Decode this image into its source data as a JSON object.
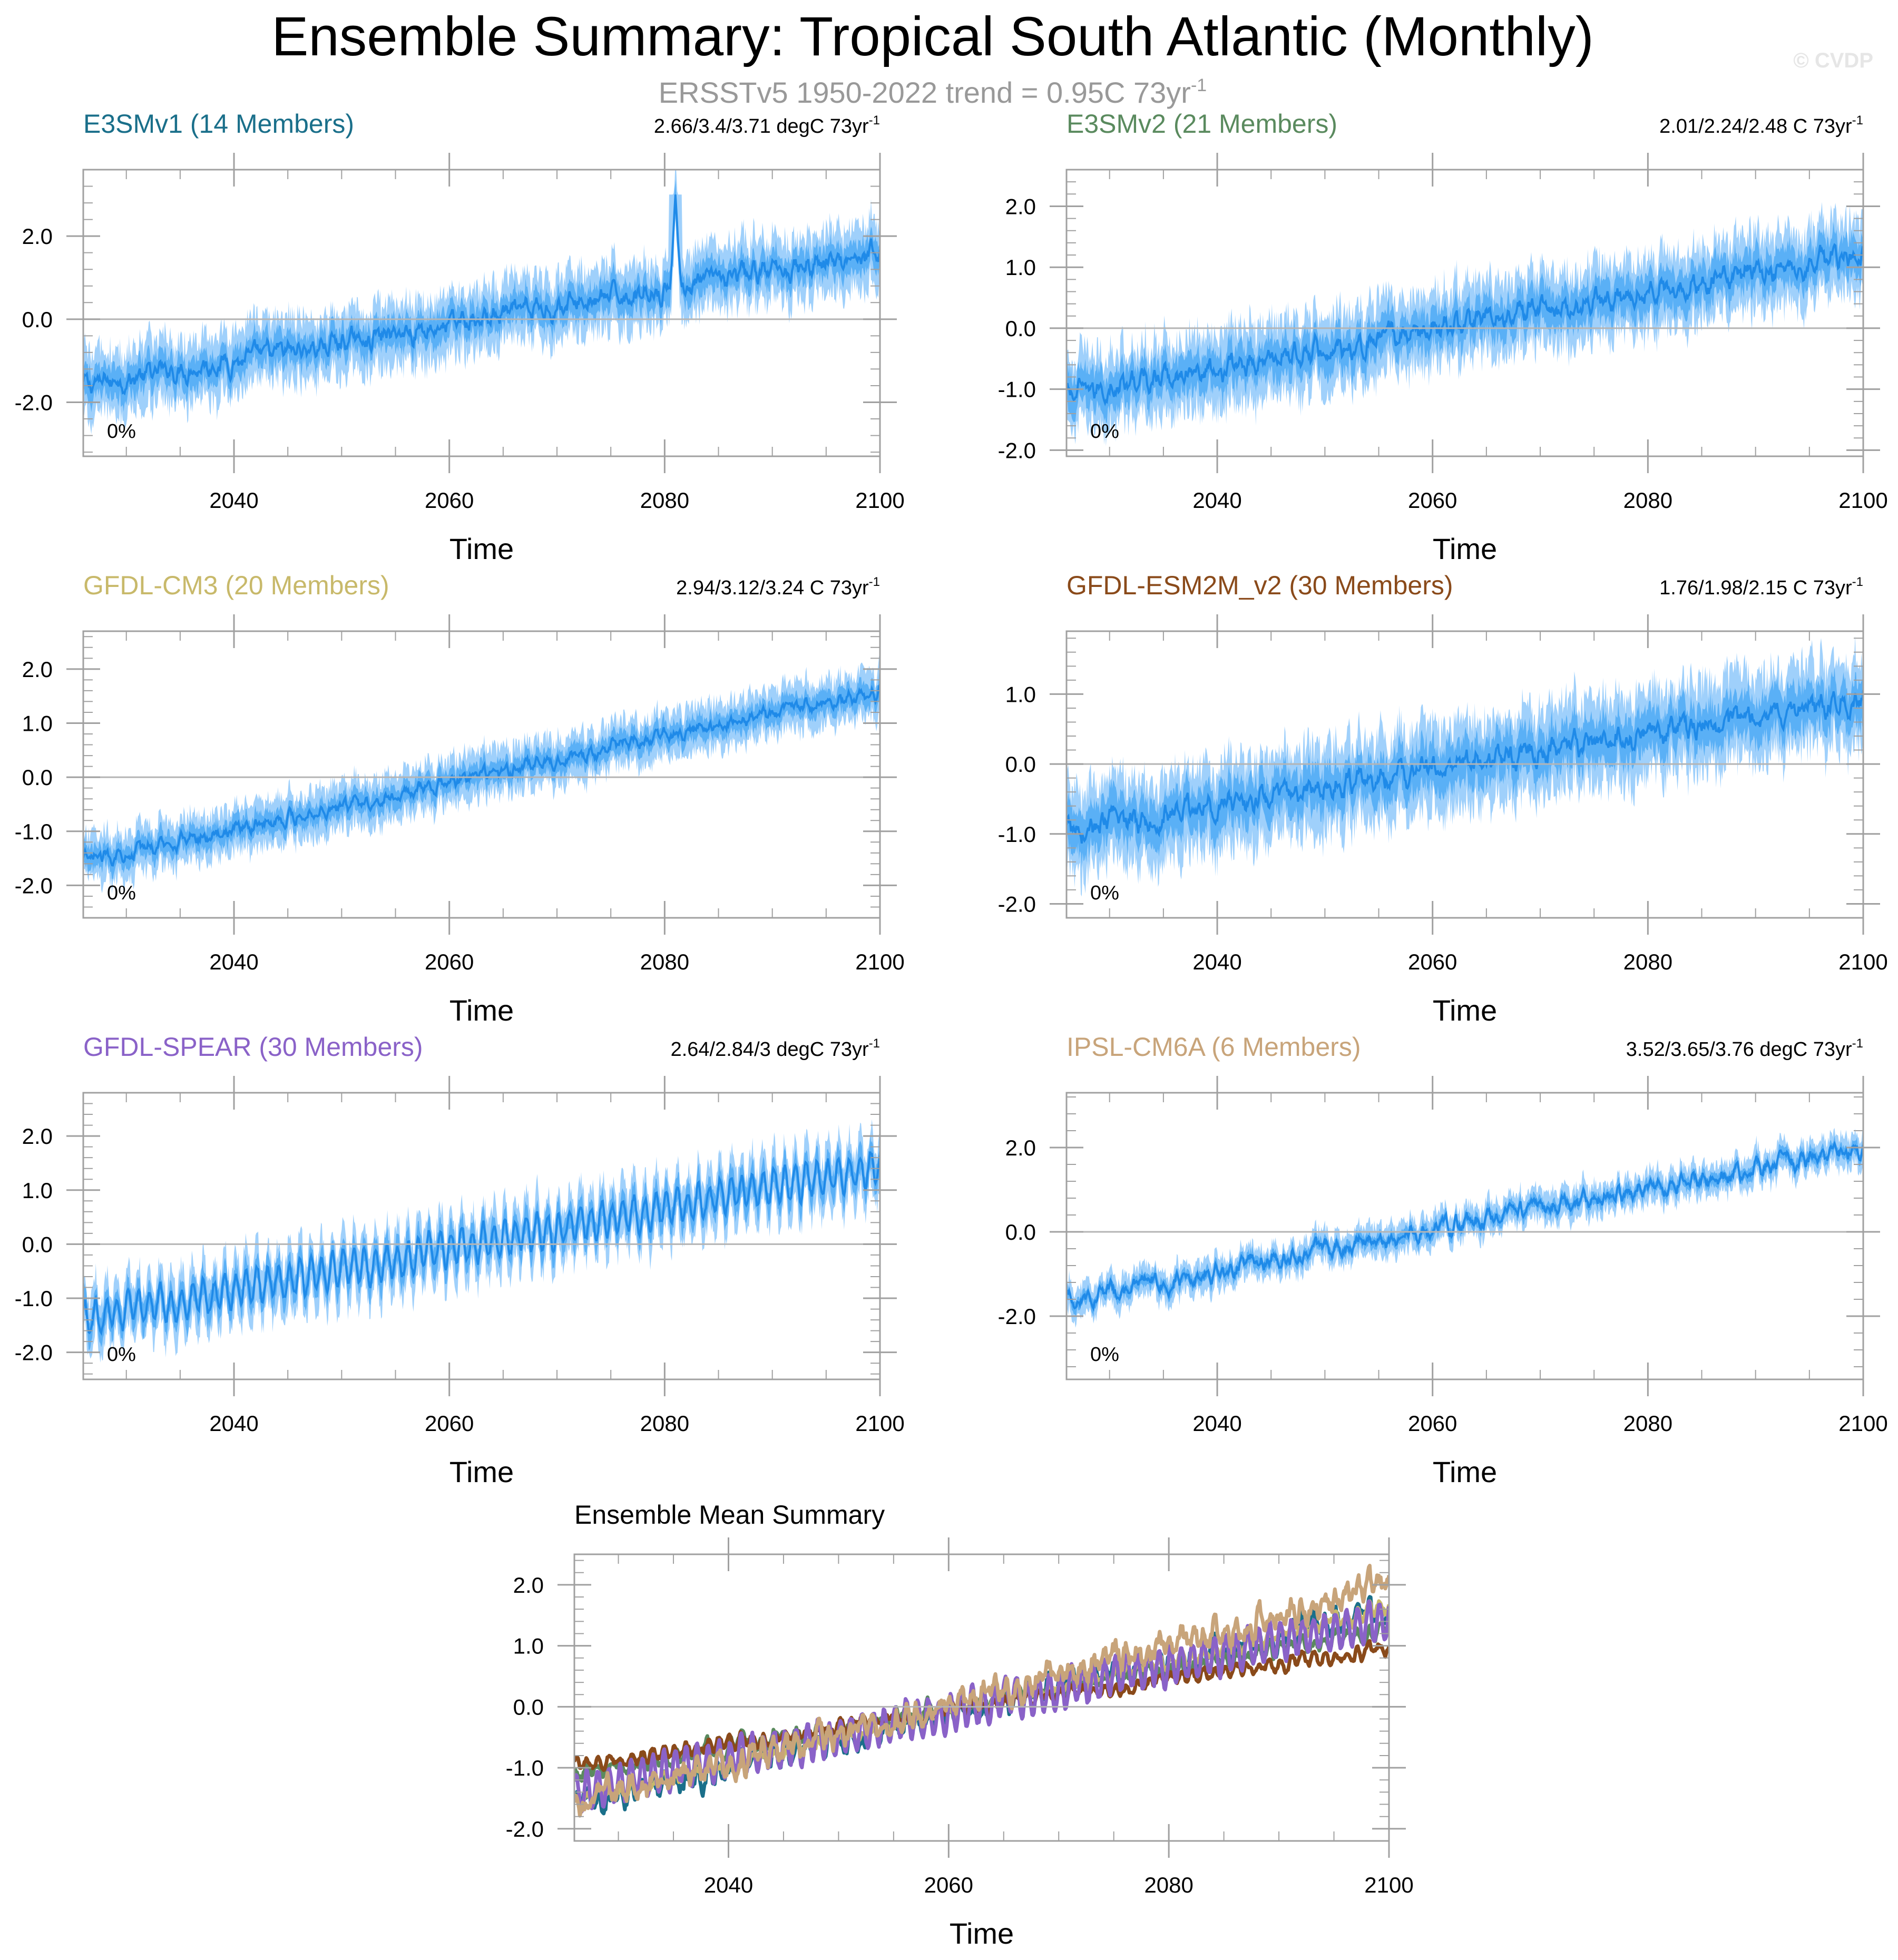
{
  "header": {
    "title": "Ensemble Summary: Tropical South Atlantic (Monthly)",
    "subtitle_prefix": "ERSSTv5 1950-2022 trend = 0.95C 73yr",
    "subtitle_sup": "-1",
    "watermark": "© CVDP"
  },
  "colors": {
    "band_outer": "#9fd0fb",
    "band_inner": "#5ab0f6",
    "mean_line": "#1f8ae8",
    "zero_line": "#b4b4b4",
    "frame": "#a0a0a0",
    "text": "#000000"
  },
  "chart_data": [
    {
      "type": "area",
      "title": "E3SMv1 (14 Members)",
      "title_color": "#1a6f8a",
      "trend_text": "2.66/3.4/3.71 degC 73yr",
      "trend_sup": "-1",
      "percent_label": "0%",
      "xlabel": "Time",
      "ylabel": "",
      "xlim": [
        2026,
        2100
      ],
      "ylim": [
        -3.3,
        3.6
      ],
      "x_ticks": [
        2040,
        2060,
        2080,
        2100
      ],
      "y_ticks": [
        -2.0,
        0.0,
        2.0
      ],
      "y_tick_labels": [
        "-2.0",
        "0.0",
        "2.0"
      ],
      "mean_start": -1.6,
      "mean_end": 1.6,
      "inner_width": 0.35,
      "outer_width": 0.75,
      "seasonal_amp": 0.1,
      "noise_amp": 0.25,
      "spike": {
        "x": 2081,
        "value": 3.0
      }
    },
    {
      "type": "area",
      "title": "E3SMv2 (21 Members)",
      "title_color": "#5a8a5e",
      "trend_text": "2.01/2.24/2.48 C 73yr",
      "trend_sup": "-1",
      "percent_label": "0%",
      "xlabel": "Time",
      "ylabel": "",
      "xlim": [
        2026,
        2100
      ],
      "ylim": [
        -2.1,
        2.6
      ],
      "x_ticks": [
        2040,
        2060,
        2080,
        2100
      ],
      "y_ticks": [
        -2.0,
        -1.0,
        0.0,
        1.0,
        2.0
      ],
      "y_tick_labels": [
        "-2.0",
        "-1.0",
        "0.0",
        "1.0",
        "2.0"
      ],
      "mean_start": -1.1,
      "mean_end": 1.25,
      "inner_width": 0.3,
      "outer_width": 0.6,
      "seasonal_amp": 0.08,
      "noise_amp": 0.18
    },
    {
      "type": "area",
      "title": "GFDL-CM3 (20 Members)",
      "title_color": "#c8b96a",
      "trend_text": "2.94/3.12/3.24 C 73yr",
      "trend_sup": "-1",
      "percent_label": "0%",
      "xlabel": "Time",
      "ylabel": "",
      "xlim": [
        2026,
        2100
      ],
      "ylim": [
        -2.6,
        2.7
      ],
      "x_ticks": [
        2040,
        2060,
        2080,
        2100
      ],
      "y_ticks": [
        -2.0,
        -1.0,
        0.0,
        1.0,
        2.0
      ],
      "y_tick_labels": [
        "-2.0",
        "-1.0",
        "0.0",
        "1.0",
        "2.0"
      ],
      "mean_start": -1.55,
      "mean_end": 1.6,
      "inner_width": 0.2,
      "outer_width": 0.42,
      "seasonal_amp": 0.06,
      "noise_amp": 0.12
    },
    {
      "type": "area",
      "title": "GFDL-ESM2M_v2 (30 Members)",
      "title_color": "#8a4a1a",
      "trend_text": "1.76/1.98/2.15 C 73yr",
      "trend_sup": "-1",
      "percent_label": "0%",
      "xlabel": "Time",
      "ylabel": "",
      "xlim": [
        2026,
        2100
      ],
      "ylim": [
        -2.2,
        1.9
      ],
      "x_ticks": [
        2040,
        2060,
        2080,
        2100
      ],
      "y_ticks": [
        -2.0,
        -1.0,
        0.0,
        1.0
      ],
      "y_tick_labels": [
        "-2.0",
        "-1.0",
        "0.0",
        "1.0"
      ],
      "mean_start": -0.95,
      "mean_end": 0.95,
      "inner_width": 0.3,
      "outer_width": 0.6,
      "seasonal_amp": 0.06,
      "noise_amp": 0.18
    },
    {
      "type": "area",
      "title": "GFDL-SPEAR (30 Members)",
      "title_color": "#8a62c8",
      "trend_text": "2.64/2.84/3 degC 73yr",
      "trend_sup": "-1",
      "percent_label": "0%",
      "xlabel": "Time",
      "ylabel": "",
      "xlim": [
        2026,
        2100
      ],
      "ylim": [
        -2.5,
        2.8
      ],
      "x_ticks": [
        2040,
        2060,
        2080,
        2100
      ],
      "y_ticks": [
        -2.0,
        -1.0,
        0.0,
        1.0,
        2.0
      ],
      "y_tick_labels": [
        "-2.0",
        "-1.0",
        "0.0",
        "1.0",
        "2.0"
      ],
      "mean_start": -1.4,
      "mean_end": 1.45,
      "inner_width": 0.25,
      "outer_width": 0.5,
      "seasonal_amp": 0.3,
      "noise_amp": 0.12
    },
    {
      "type": "area",
      "title": "IPSL-CM6A (6 Members)",
      "title_color": "#c8a47a",
      "trend_text": "3.52/3.65/3.76 degC 73yr",
      "trend_sup": "-1",
      "percent_label": "0%",
      "xlabel": "Time",
      "ylabel": "",
      "xlim": [
        2026,
        2100
      ],
      "ylim": [
        -3.5,
        3.3
      ],
      "x_ticks": [
        2040,
        2060,
        2080,
        2100
      ],
      "y_ticks": [
        -2.0,
        0.0,
        2.0
      ],
      "y_tick_labels": [
        "-2.0",
        "0.0",
        "2.0"
      ],
      "mean_start": -1.6,
      "mean_end": 2.0,
      "inner_width": 0.15,
      "outer_width": 0.35,
      "seasonal_amp": 0.08,
      "noise_amp": 0.2
    },
    {
      "type": "line",
      "title": "Ensemble Mean Summary",
      "title_color": "#000000",
      "xlabel": "Time",
      "ylabel": "",
      "xlim": [
        2026,
        2100
      ],
      "ylim": [
        -2.2,
        2.5
      ],
      "x_ticks": [
        2040,
        2060,
        2080,
        2100
      ],
      "y_ticks": [
        -2.0,
        -1.0,
        0.0,
        1.0,
        2.0
      ],
      "y_tick_labels": [
        "-2.0",
        "-1.0",
        "0.0",
        "1.0",
        "2.0"
      ],
      "series": [
        {
          "name": "E3SMv1",
          "color": "#1a6f8a",
          "start": -1.6,
          "end": 1.6,
          "seasonal_amp": 0.12,
          "noise_amp": 0.18
        },
        {
          "name": "E3SMv2",
          "color": "#5a8a5e",
          "start": -1.1,
          "end": 1.25,
          "seasonal_amp": 0.08,
          "noise_amp": 0.12
        },
        {
          "name": "GFDL-CM3",
          "color": "#c8b96a",
          "start": -1.55,
          "end": 1.6,
          "seasonal_amp": 0.08,
          "noise_amp": 0.1
        },
        {
          "name": "GFDL-ESM2M_v2",
          "color": "#8a4a1a",
          "start": -0.95,
          "end": 0.95,
          "seasonal_amp": 0.08,
          "noise_amp": 0.08
        },
        {
          "name": "GFDL-SPEAR",
          "color": "#8a62c8",
          "start": -1.4,
          "end": 1.45,
          "seasonal_amp": 0.3,
          "noise_amp": 0.08
        },
        {
          "name": "IPSL-CM6A",
          "color": "#c8a47a",
          "start": -1.6,
          "end": 2.0,
          "seasonal_amp": 0.12,
          "noise_amp": 0.2
        }
      ]
    }
  ]
}
